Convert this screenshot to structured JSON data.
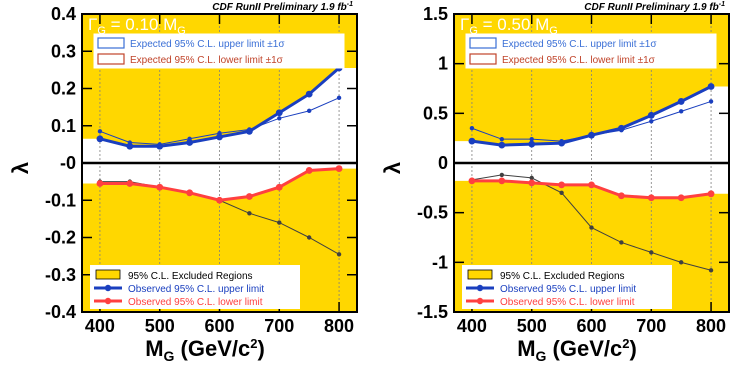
{
  "colors": {
    "band": "#ffd700",
    "observed_upper": "#1a3fbf",
    "observed_lower": "#ff4040",
    "expected_upper_box": "#3a6fd6",
    "expected_lower_box": "#c0442a",
    "expected_line": "#1a3fbf",
    "expected_lower_line": "#404040",
    "grid": "#808080"
  },
  "chart_data": [
    {
      "type": "line",
      "header": "CDF RunII Preliminary 1.9 fb",
      "header_sup": "-1",
      "width_label": "ΓG = 0.10 MG",
      "width_label_parts": {
        "gamma": "Γ",
        "sub_g": "G",
        "value": " = 0.10 M",
        "sub_m": "G"
      },
      "xlabel": {
        "main": "M",
        "sub": "G",
        "unit": " (GeV/c",
        "sup": "2",
        "close": ")"
      },
      "ylabel": "λ",
      "xlim": [
        370,
        830
      ],
      "ylim": [
        -0.4,
        0.4
      ],
      "xticks": [
        400,
        500,
        600,
        700,
        800
      ],
      "xtick_labels": [
        "400",
        "500",
        "600",
        "700",
        "800"
      ],
      "yticks": [
        -0.4,
        -0.3,
        -0.2,
        -0.1,
        0,
        0.1,
        0.2,
        0.3,
        0.4
      ],
      "ytick_labels": [
        "-0.4",
        "-0.3",
        "-0.2",
        "-0.1",
        "-0",
        "0.1",
        "0.2",
        "0.3",
        "0.4"
      ],
      "x": [
        400,
        450,
        500,
        550,
        600,
        650,
        700,
        750,
        800
      ],
      "series": [
        {
          "name": "Observed 95% C.L. upper limit",
          "role": "observed_upper",
          "values": [
            0.065,
            0.045,
            0.045,
            0.055,
            0.07,
            0.085,
            0.135,
            0.185,
            0.255
          ]
        },
        {
          "name": "Observed 95% C.L. lower limit",
          "role": "observed_lower",
          "values": [
            -0.055,
            -0.055,
            -0.065,
            -0.08,
            -0.1,
            -0.09,
            -0.065,
            -0.02,
            -0.015
          ]
        },
        {
          "name": "Expected 95% C.L. upper limit ±1σ",
          "role": "expected_upper",
          "values": [
            0.085,
            0.055,
            0.05,
            0.065,
            0.08,
            0.09,
            0.12,
            0.14,
            0.175
          ]
        },
        {
          "name": "Expected 95% C.L. lower limit ±1σ",
          "role": "expected_lower",
          "values": [
            -0.05,
            -0.05,
            -0.065,
            -0.08,
            -0.1,
            -0.135,
            -0.16,
            -0.2,
            -0.245
          ]
        }
      ],
      "legend_top": [
        {
          "label": "Expected 95% C.L. upper limit ±1σ",
          "style": "box-blue"
        },
        {
          "label": "Expected 95% C.L. lower limit ±1σ",
          "style": "box-red"
        }
      ],
      "legend_bottom": [
        {
          "label": "95% C.L. Excluded Regions",
          "style": "band"
        },
        {
          "label": "Observed 95% C.L. upper limit",
          "style": "line-blue"
        },
        {
          "label": "Observed 95% C.L. lower limit",
          "style": "line-red"
        }
      ],
      "grid": "x-dotted"
    },
    {
      "type": "line",
      "header": "CDF RunII Preliminary 1.9 fb",
      "header_sup": "-1",
      "width_label": "ΓG = 0.50 MG",
      "width_label_parts": {
        "gamma": "Γ",
        "sub_g": "G",
        "value": " = 0.50 M",
        "sub_m": "G"
      },
      "xlabel": {
        "main": "M",
        "sub": "G",
        "unit": " (GeV/c",
        "sup": "2",
        "close": ")"
      },
      "ylabel": "λ",
      "xlim": [
        370,
        830
      ],
      "ylim": [
        -1.5,
        1.5
      ],
      "xticks": [
        400,
        500,
        600,
        700,
        800
      ],
      "xtick_labels": [
        "400",
        "500",
        "600",
        "700",
        "800"
      ],
      "yticks": [
        -1.5,
        -1,
        -0.5,
        0,
        0.5,
        1,
        1.5
      ],
      "ytick_labels": [
        "-1.5",
        "-1",
        "-0.5",
        "0",
        "0.5",
        "1",
        "1.5"
      ],
      "x": [
        400,
        450,
        500,
        550,
        600,
        650,
        700,
        750,
        800
      ],
      "series": [
        {
          "name": "Observed 95% C.L. upper limit",
          "role": "observed_upper",
          "values": [
            0.22,
            0.18,
            0.19,
            0.2,
            0.28,
            0.35,
            0.48,
            0.62,
            0.77
          ]
        },
        {
          "name": "Observed 95% C.L. lower limit",
          "role": "observed_lower",
          "values": [
            -0.18,
            -0.18,
            -0.2,
            -0.22,
            -0.22,
            -0.33,
            -0.35,
            -0.35,
            -0.31
          ]
        },
        {
          "name": "Expected 95% C.L. upper limit ±1σ",
          "role": "expected_upper",
          "values": [
            0.35,
            0.24,
            0.24,
            0.22,
            0.28,
            0.33,
            0.42,
            0.52,
            0.62
          ]
        },
        {
          "name": "Expected 95% C.L. lower limit ±1σ",
          "role": "expected_lower",
          "values": [
            -0.17,
            -0.12,
            -0.15,
            -0.3,
            -0.65,
            -0.8,
            -0.9,
            -1.0,
            -1.08
          ]
        }
      ],
      "legend_top": [
        {
          "label": "Expected 95% C.L. upper limit ±1σ",
          "style": "box-blue"
        },
        {
          "label": "Expected 95% C.L. lower limit ±1σ",
          "style": "box-red"
        }
      ],
      "legend_bottom": [
        {
          "label": "95% C.L. Excluded Regions",
          "style": "band"
        },
        {
          "label": "Observed 95% C.L. upper limit",
          "style": "line-blue"
        },
        {
          "label": "Observed 95% C.L. lower limit",
          "style": "line-red"
        }
      ],
      "grid": "x-dotted"
    }
  ]
}
